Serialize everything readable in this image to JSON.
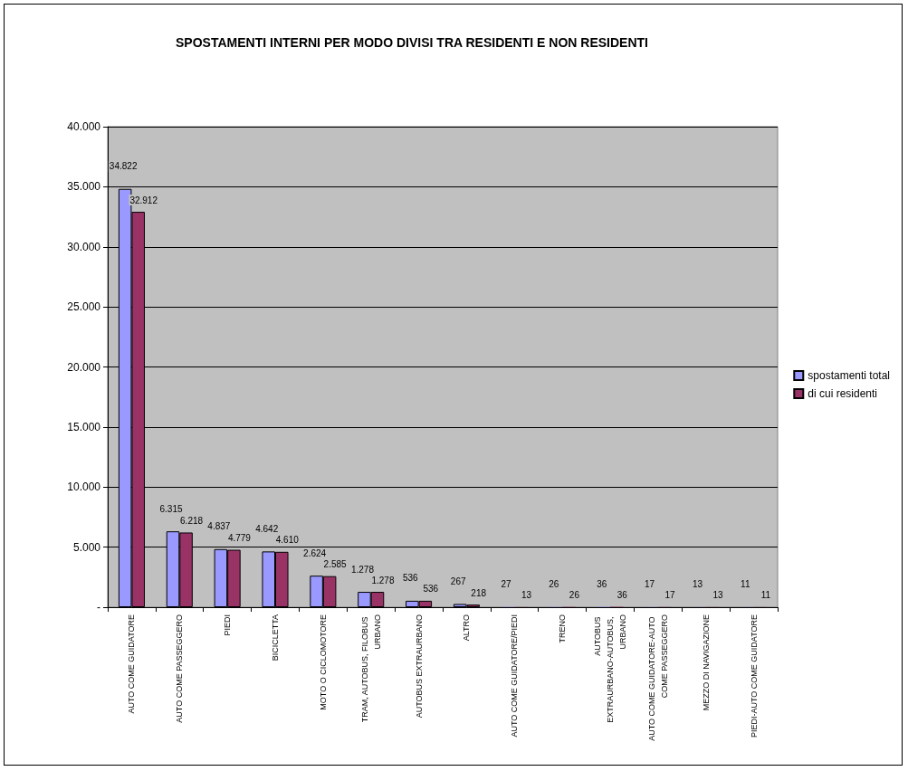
{
  "chart_data": {
    "type": "bar",
    "title": "SPOSTAMENTI INTERNI PER MODO DIVISI TRA RESIDENTI E NON RESIDENTI",
    "categories": [
      "AUTO COME GUIDATORE",
      "AUTO COME PASSEGGERO",
      "PIEDI",
      "BICICLETTA",
      "MOTO O CICLOMOTORE",
      "TRAM, AUTOBUS, FILOBUS URBANO",
      "AUTOBUS EXTRAURBANO",
      "ALTRO",
      "AUTO COME GUIDATORE/PIEDI",
      "TRENO",
      "AUTOBUS EXTRAURBANO-AUTOBUS, URBANO",
      "AUTO COME GUIDATORE-AUTO COME PASSEGGERO",
      "MEZZO DI NAVIGAZIONE",
      "PIEDI-AUTO COME GUIDATORE"
    ],
    "series": [
      {
        "name": "spostamenti total",
        "color": "#9999ff",
        "values": [
          34822,
          6315,
          4837,
          4642,
          2624,
          1278,
          536,
          267,
          27,
          26,
          36,
          17,
          13,
          11
        ],
        "value_labels": [
          "34.822",
          "6.315",
          "4.837",
          "4.642",
          "2.624",
          "1.278",
          "536",
          "267",
          "27",
          "26",
          "36",
          "17",
          "13",
          "11"
        ]
      },
      {
        "name": "di cui residenti",
        "color": "#993366",
        "values": [
          32912,
          6218,
          4779,
          4610,
          2585,
          1278,
          536,
          218,
          13,
          26,
          36,
          17,
          13,
          11
        ],
        "value_labels": [
          "32.912",
          "6.218",
          "4.779",
          "4.610",
          "2.585",
          "1.278",
          "536",
          "218",
          "13",
          "26",
          "36",
          "17",
          "13",
          "11"
        ]
      }
    ],
    "ylim": [
      0,
      40000
    ],
    "yticks": [
      {
        "value": 0,
        "label": "-"
      },
      {
        "value": 5000,
        "label": "5.000"
      },
      {
        "value": 10000,
        "label": "10.000"
      },
      {
        "value": 15000,
        "label": "15.000"
      },
      {
        "value": 20000,
        "label": "20.000"
      },
      {
        "value": 25000,
        "label": "25.000"
      },
      {
        "value": 30000,
        "label": "30.000"
      },
      {
        "value": 35000,
        "label": "35.000"
      },
      {
        "value": 40000,
        "label": "40.000"
      }
    ],
    "grid": "y",
    "legend": "right"
  }
}
